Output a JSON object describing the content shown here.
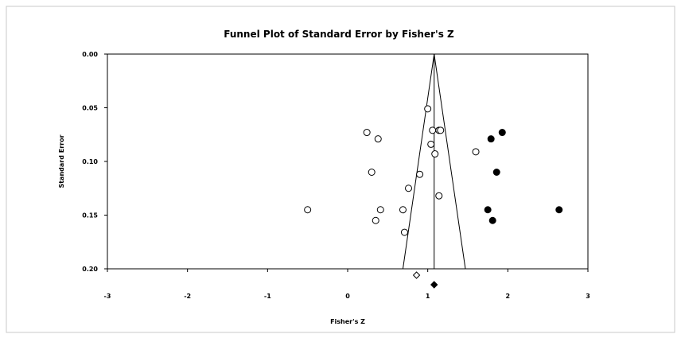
{
  "chart_data": {
    "type": "scatter",
    "title": "Funnel Plot of Standard Error by Fisher's Z",
    "xlabel": "Fisher's Z",
    "ylabel": "Standard Error",
    "xlim": [
      -3,
      3
    ],
    "ylim": [
      0.0,
      0.2
    ],
    "y_inverted": true,
    "x_ticks": [
      "-3",
      "-2",
      "-1",
      "0",
      "1",
      "2",
      "3"
    ],
    "y_ticks": [
      "0.00",
      "0.05",
      "0.10",
      "0.15",
      "0.20"
    ],
    "grid": false,
    "legend": "none",
    "colors": {
      "axis": "#000000",
      "observed_fill": "#ffffff",
      "imputed_fill": "#000000"
    },
    "mean_line_x": 1.08,
    "funnel": {
      "apex": [
        1.08,
        0.0
      ],
      "bottom_left": [
        0.69,
        0.2
      ],
      "bottom_right": [
        1.47,
        0.2
      ]
    },
    "series": [
      {
        "name": "",
        "marker": "open-circle",
        "points": [
          [
            1.0,
            0.051
          ],
          [
            0.24,
            0.073
          ],
          [
            0.38,
            0.079
          ],
          [
            1.06,
            0.071
          ],
          [
            1.14,
            0.071
          ],
          [
            1.16,
            0.071
          ],
          [
            1.04,
            0.084
          ],
          [
            1.09,
            0.093
          ],
          [
            1.6,
            0.091
          ],
          [
            0.3,
            0.11
          ],
          [
            0.9,
            0.112
          ],
          [
            0.76,
            0.125
          ],
          [
            1.14,
            0.132
          ],
          [
            -0.5,
            0.145
          ],
          [
            0.41,
            0.145
          ],
          [
            0.69,
            0.145
          ],
          [
            0.35,
            0.155
          ],
          [
            0.71,
            0.166
          ]
        ]
      },
      {
        "name": "",
        "marker": "filled-circle",
        "points": [
          [
            1.93,
            0.073
          ],
          [
            1.79,
            0.079
          ],
          [
            1.86,
            0.11
          ],
          [
            1.75,
            0.145
          ],
          [
            1.81,
            0.155
          ],
          [
            2.64,
            0.145
          ]
        ]
      }
    ],
    "summary_markers": [
      {
        "name": "",
        "shape": "open-diamond",
        "x": 0.86
      },
      {
        "name": "",
        "shape": "filled-diamond",
        "x": 1.08
      }
    ]
  }
}
